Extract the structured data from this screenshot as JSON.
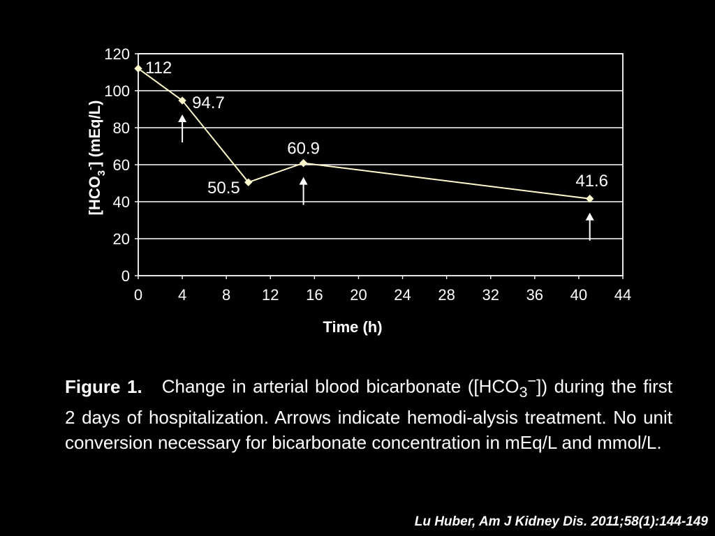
{
  "chart_data": {
    "type": "line",
    "xlabel": "Time (h)",
    "ylabel_parts": [
      "[HCO",
      "3",
      "-",
      "] (mEq/L)"
    ],
    "xlim": [
      0,
      44
    ],
    "ylim": [
      0,
      120
    ],
    "xticks": [
      0,
      4,
      8,
      12,
      16,
      20,
      24,
      28,
      32,
      36,
      40,
      44
    ],
    "yticks": [
      0,
      20,
      40,
      60,
      80,
      100,
      120
    ],
    "grid": "horizontal",
    "series": [
      {
        "color": "#fffacd",
        "points": [
          {
            "x": 0,
            "y": 112,
            "label": "112"
          },
          {
            "x": 4,
            "y": 94.7,
            "label": "94.7"
          },
          {
            "x": 10,
            "y": 50.5,
            "label": "50.5"
          },
          {
            "x": 15,
            "y": 60.9,
            "label": "60.9"
          },
          {
            "x": 41,
            "y": 41.6,
            "label": "41.6"
          }
        ]
      }
    ],
    "annotations": [
      {
        "type": "arrow",
        "x": 4,
        "meaning": "hemodialysis treatment"
      },
      {
        "type": "arrow",
        "x": 15,
        "meaning": "hemodialysis treatment"
      },
      {
        "type": "arrow",
        "x": 41,
        "meaning": "hemodialysis treatment"
      }
    ]
  },
  "caption": {
    "title": "Figure 1.",
    "text_before_ion": "Change in arterial blood bicarbonate ([HCO",
    "ion_subscript": "3",
    "ion_superscript": "−",
    "text_after_ion": "]) during the first 2 days of hospitalization. Arrows indicate hemodi-alysis treatment. No unit conversion necessary for bicarbonate concentration in mEq/L and mmol/L."
  },
  "citation": "Lu Huber, Am J Kidney Dis. 2011;58(1):144-149",
  "colors": {
    "background": "#000000",
    "text": "#ffffff",
    "gridline": "#ffffff",
    "series_line": "#fffacd"
  }
}
